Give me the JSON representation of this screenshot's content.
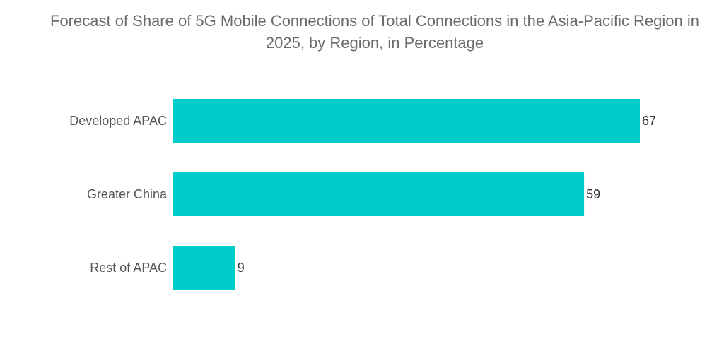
{
  "chart_data": {
    "type": "bar",
    "orientation": "horizontal",
    "title": "Forecast of Share of 5G Mobile Connections of Total Connections in the Asia-Pacific Region in 2025, by Region, in Percentage",
    "categories": [
      "Developed APAC",
      "Greater China",
      "Rest of APAC"
    ],
    "values": [
      67,
      59,
      9
    ],
    "xlabel": "",
    "ylabel": "",
    "xlim": [
      0,
      67
    ],
    "grid": false,
    "legend": "none",
    "data_labels": true,
    "bar_color": "#00cccc"
  }
}
